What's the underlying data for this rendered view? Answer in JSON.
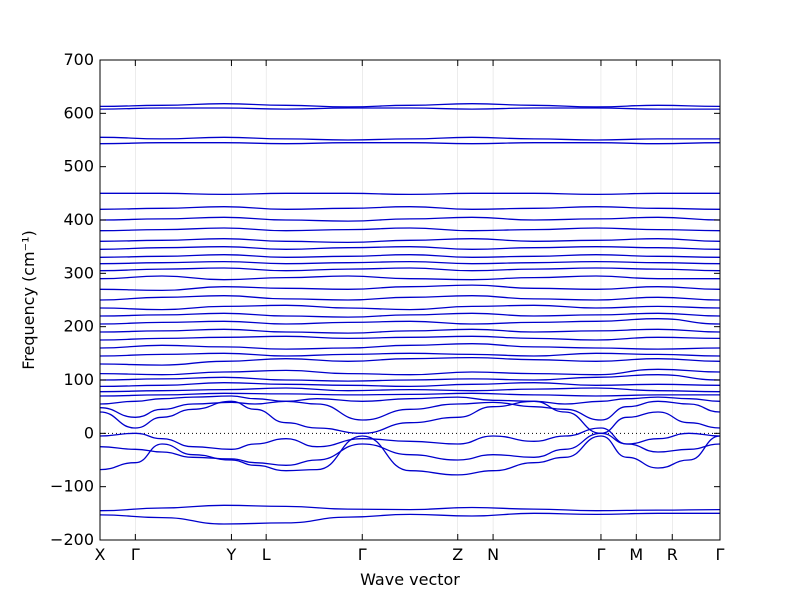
{
  "chart_data": {
    "type": "line",
    "title": "",
    "xlabel": "Wave vector",
    "ylabel": "Frequency (cm⁻¹)",
    "ylim": [
      -200,
      700
    ],
    "yticks": [
      -200,
      -100,
      0,
      100,
      200,
      300,
      400,
      500,
      600,
      700
    ],
    "ytick_labels": [
      "−200",
      "−100",
      "0",
      "100",
      "200",
      "300",
      "400",
      "500",
      "600",
      "700"
    ],
    "kpoints": [
      {
        "label": "X",
        "x": 0.0
      },
      {
        "label": "Γ",
        "x": 0.057
      },
      {
        "label": "Y",
        "x": 0.212
      },
      {
        "label": "L",
        "x": 0.268
      },
      {
        "label": "Γ",
        "x": 0.423
      },
      {
        "label": "Z",
        "x": 0.577
      },
      {
        "label": "N",
        "x": 0.634
      },
      {
        "label": "Γ",
        "x": 0.808
      },
      {
        "label": "M",
        "x": 0.865
      },
      {
        "label": "R",
        "x": 0.923
      },
      {
        "label": "Γ",
        "x": 1.0
      }
    ],
    "zero_line": true,
    "line_color": "#0000cc",
    "series": [
      {
        "x": [
          0,
          0.1,
          0.2,
          0.3,
          0.4,
          0.5,
          0.6,
          0.7,
          0.8,
          0.9,
          1.0
        ],
        "y": [
          -153,
          -158,
          -170,
          -168,
          -157,
          -152,
          -155,
          -150,
          -152,
          -150,
          -150
        ]
      },
      {
        "x": [
          0,
          0.1,
          0.2,
          0.3,
          0.4,
          0.5,
          0.6,
          0.7,
          0.8,
          0.9,
          1.0
        ],
        "y": [
          -145,
          -140,
          -135,
          -137,
          -142,
          -143,
          -139,
          -142,
          -145,
          -144,
          -143
        ]
      },
      {
        "x": [
          0,
          0.057,
          0.1,
          0.15,
          0.212,
          0.25,
          0.3,
          0.35,
          0.423,
          0.5,
          0.577,
          0.634,
          0.7,
          0.75,
          0.808,
          0.85,
          0.9,
          0.95,
          1.0
        ],
        "y": [
          -68,
          -55,
          -20,
          -40,
          -50,
          -60,
          -70,
          -68,
          -5,
          -70,
          -78,
          -70,
          -55,
          -45,
          -5,
          -45,
          -65,
          -50,
          -5
        ]
      },
      {
        "x": [
          0,
          0.057,
          0.1,
          0.15,
          0.212,
          0.25,
          0.3,
          0.35,
          0.423,
          0.5,
          0.577,
          0.634,
          0.7,
          0.75,
          0.808,
          0.85,
          0.9,
          0.95,
          1.0
        ],
        "y": [
          -25,
          -30,
          -35,
          -45,
          -48,
          -55,
          -60,
          -50,
          -20,
          -40,
          -50,
          -40,
          -45,
          -30,
          0,
          -20,
          -35,
          -30,
          -20
        ]
      },
      {
        "x": [
          0,
          0.057,
          0.1,
          0.15,
          0.212,
          0.25,
          0.3,
          0.35,
          0.423,
          0.5,
          0.577,
          0.634,
          0.7,
          0.75,
          0.808,
          0.85,
          0.9,
          0.95,
          1.0
        ],
        "y": [
          -5,
          0,
          -10,
          -25,
          -30,
          -20,
          -10,
          -25,
          -10,
          -15,
          -20,
          -5,
          -15,
          -5,
          10,
          -20,
          -10,
          0,
          -5
        ]
      },
      {
        "x": [
          0,
          0.057,
          0.1,
          0.15,
          0.212,
          0.25,
          0.3,
          0.35,
          0.423,
          0.5,
          0.577,
          0.634,
          0.7,
          0.75,
          0.808,
          0.85,
          0.9,
          0.95,
          1.0
        ],
        "y": [
          40,
          10,
          30,
          45,
          60,
          45,
          20,
          10,
          0,
          20,
          30,
          50,
          60,
          40,
          0,
          30,
          40,
          20,
          10
        ]
      },
      {
        "x": [
          0,
          0.057,
          0.1,
          0.15,
          0.212,
          0.25,
          0.3,
          0.35,
          0.423,
          0.5,
          0.577,
          0.634,
          0.7,
          0.75,
          0.808,
          0.85,
          0.9,
          0.95,
          1.0
        ],
        "y": [
          48,
          30,
          45,
          55,
          58,
          55,
          60,
          55,
          25,
          45,
          55,
          58,
          50,
          45,
          25,
          50,
          60,
          55,
          40
        ]
      },
      {
        "x": [
          0,
          0.057,
          0.1,
          0.15,
          0.212,
          0.25,
          0.3,
          0.35,
          0.423,
          0.5,
          0.577,
          0.634,
          0.7,
          0.75,
          0.808,
          0.85,
          0.9,
          0.95,
          1.0
        ],
        "y": [
          55,
          60,
          65,
          68,
          70,
          65,
          60,
          65,
          60,
          65,
          68,
          62,
          60,
          55,
          60,
          65,
          68,
          65,
          60
        ]
      },
      {
        "x": [
          0,
          0.1,
          0.2,
          0.3,
          0.4,
          0.5,
          0.6,
          0.7,
          0.8,
          0.9,
          1.0
        ],
        "y": [
          70,
          72,
          75,
          74,
          72,
          73,
          75,
          72,
          70,
          72,
          72
        ]
      },
      {
        "x": [
          0,
          0.1,
          0.2,
          0.3,
          0.4,
          0.5,
          0.6,
          0.7,
          0.8,
          0.9,
          1.0
        ],
        "y": [
          78,
          80,
          82,
          85,
          80,
          82,
          80,
          83,
          85,
          80,
          78
        ]
      },
      {
        "x": [
          0,
          0.1,
          0.2,
          0.3,
          0.4,
          0.5,
          0.6,
          0.7,
          0.8,
          0.9,
          1.0
        ],
        "y": [
          88,
          90,
          95,
          92,
          90,
          88,
          92,
          95,
          90,
          92,
          90
        ]
      },
      {
        "x": [
          0,
          0.1,
          0.2,
          0.3,
          0.4,
          0.5,
          0.6,
          0.7,
          0.8,
          0.9,
          1.0
        ],
        "y": [
          100,
          102,
          105,
          100,
          98,
          100,
          102,
          100,
          105,
          110,
          100
        ]
      },
      {
        "x": [
          0,
          0.1,
          0.2,
          0.3,
          0.4,
          0.5,
          0.6,
          0.7,
          0.8,
          0.9,
          1.0
        ],
        "y": [
          112,
          110,
          115,
          118,
          112,
          110,
          115,
          112,
          110,
          120,
          115
        ]
      },
      {
        "x": [
          0,
          0.1,
          0.2,
          0.3,
          0.4,
          0.5,
          0.6,
          0.7,
          0.8,
          0.9,
          1.0
        ],
        "y": [
          130,
          128,
          135,
          140,
          135,
          140,
          142,
          138,
          135,
          140,
          135
        ]
      },
      {
        "x": [
          0,
          0.1,
          0.2,
          0.3,
          0.4,
          0.5,
          0.6,
          0.7,
          0.8,
          0.9,
          1.0
        ],
        "y": [
          145,
          148,
          150,
          145,
          148,
          150,
          148,
          145,
          150,
          148,
          145
        ]
      },
      {
        "x": [
          0,
          0.1,
          0.2,
          0.3,
          0.4,
          0.5,
          0.6,
          0.7,
          0.8,
          0.9,
          1.0
        ],
        "y": [
          160,
          165,
          162,
          158,
          160,
          165,
          168,
          162,
          160,
          158,
          160
        ]
      },
      {
        "x": [
          0,
          0.1,
          0.2,
          0.3,
          0.4,
          0.5,
          0.6,
          0.7,
          0.8,
          0.9,
          1.0
        ],
        "y": [
          175,
          178,
          180,
          182,
          178,
          180,
          182,
          178,
          175,
          180,
          178
        ]
      },
      {
        "x": [
          0,
          0.1,
          0.2,
          0.3,
          0.4,
          0.5,
          0.6,
          0.7,
          0.8,
          0.9,
          1.0
        ],
        "y": [
          190,
          192,
          195,
          190,
          188,
          192,
          195,
          190,
          192,
          195,
          190
        ]
      },
      {
        "x": [
          0,
          0.1,
          0.2,
          0.3,
          0.4,
          0.5,
          0.6,
          0.7,
          0.8,
          0.9,
          1.0
        ],
        "y": [
          205,
          208,
          210,
          205,
          208,
          210,
          205,
          208,
          210,
          215,
          205
        ]
      },
      {
        "x": [
          0,
          0.1,
          0.2,
          0.3,
          0.4,
          0.5,
          0.6,
          0.7,
          0.8,
          0.9,
          1.0
        ],
        "y": [
          220,
          222,
          225,
          220,
          218,
          222,
          225,
          220,
          222,
          225,
          220
        ]
      },
      {
        "x": [
          0,
          0.1,
          0.2,
          0.3,
          0.4,
          0.5,
          0.6,
          0.7,
          0.8,
          0.9,
          1.0
        ],
        "y": [
          235,
          232,
          238,
          240,
          235,
          232,
          238,
          240,
          235,
          238,
          235
        ]
      },
      {
        "x": [
          0,
          0.1,
          0.2,
          0.3,
          0.4,
          0.5,
          0.6,
          0.7,
          0.8,
          0.9,
          1.0
        ],
        "y": [
          250,
          255,
          258,
          252,
          250,
          255,
          258,
          252,
          250,
          255,
          250
        ]
      },
      {
        "x": [
          0,
          0.1,
          0.2,
          0.3,
          0.4,
          0.5,
          0.6,
          0.7,
          0.8,
          0.9,
          1.0
        ],
        "y": [
          270,
          268,
          275,
          272,
          270,
          275,
          278,
          272,
          270,
          275,
          270
        ]
      },
      {
        "x": [
          0,
          0.1,
          0.2,
          0.3,
          0.4,
          0.5,
          0.6,
          0.7,
          0.8,
          0.9,
          1.0
        ],
        "y": [
          290,
          295,
          288,
          292,
          295,
          290,
          288,
          292,
          295,
          290,
          290
        ]
      },
      {
        "x": [
          0,
          0.1,
          0.2,
          0.3,
          0.4,
          0.5,
          0.6,
          0.7,
          0.8,
          0.9,
          1.0
        ],
        "y": [
          305,
          308,
          310,
          305,
          308,
          310,
          305,
          308,
          310,
          308,
          305
        ]
      },
      {
        "x": [
          0,
          0.1,
          0.2,
          0.3,
          0.4,
          0.5,
          0.6,
          0.7,
          0.8,
          0.9,
          1.0
        ],
        "y": [
          318,
          320,
          322,
          318,
          320,
          322,
          318,
          320,
          322,
          320,
          318
        ]
      },
      {
        "x": [
          0,
          0.1,
          0.2,
          0.3,
          0.4,
          0.5,
          0.6,
          0.7,
          0.8,
          0.9,
          1.0
        ],
        "y": [
          330,
          332,
          335,
          330,
          332,
          335,
          330,
          332,
          335,
          332,
          330
        ]
      },
      {
        "x": [
          0,
          0.1,
          0.2,
          0.3,
          0.4,
          0.5,
          0.6,
          0.7,
          0.8,
          0.9,
          1.0
        ],
        "y": [
          345,
          348,
          350,
          345,
          348,
          350,
          345,
          348,
          350,
          348,
          345
        ]
      },
      {
        "x": [
          0,
          0.1,
          0.2,
          0.3,
          0.4,
          0.5,
          0.6,
          0.7,
          0.8,
          0.9,
          1.0
        ],
        "y": [
          360,
          362,
          365,
          360,
          358,
          362,
          365,
          360,
          362,
          365,
          360
        ]
      },
      {
        "x": [
          0,
          0.1,
          0.2,
          0.3,
          0.4,
          0.5,
          0.6,
          0.7,
          0.8,
          0.9,
          1.0
        ],
        "y": [
          380,
          382,
          385,
          380,
          382,
          385,
          380,
          382,
          385,
          382,
          380
        ]
      },
      {
        "x": [
          0,
          0.1,
          0.2,
          0.3,
          0.4,
          0.5,
          0.6,
          0.7,
          0.8,
          0.9,
          1.0
        ],
        "y": [
          400,
          402,
          405,
          400,
          398,
          402,
          405,
          400,
          402,
          405,
          400
        ]
      },
      {
        "x": [
          0,
          0.1,
          0.2,
          0.3,
          0.4,
          0.5,
          0.6,
          0.7,
          0.8,
          0.9,
          1.0
        ],
        "y": [
          420,
          422,
          425,
          420,
          422,
          425,
          420,
          422,
          425,
          422,
          420
        ]
      },
      {
        "x": [
          0,
          0.1,
          0.2,
          0.3,
          0.4,
          0.5,
          0.6,
          0.7,
          0.8,
          0.9,
          1.0
        ],
        "y": [
          450,
          450,
          448,
          450,
          450,
          448,
          450,
          450,
          448,
          450,
          450
        ]
      },
      {
        "x": [
          0,
          0.1,
          0.2,
          0.3,
          0.4,
          0.5,
          0.6,
          0.7,
          0.8,
          0.9,
          1.0
        ],
        "y": [
          543,
          545,
          545,
          543,
          545,
          545,
          543,
          545,
          545,
          543,
          545
        ]
      },
      {
        "x": [
          0,
          0.1,
          0.2,
          0.3,
          0.4,
          0.5,
          0.6,
          0.7,
          0.8,
          0.9,
          1.0
        ],
        "y": [
          555,
          552,
          555,
          552,
          550,
          552,
          555,
          552,
          550,
          552,
          552
        ]
      },
      {
        "x": [
          0,
          0.1,
          0.2,
          0.3,
          0.4,
          0.5,
          0.6,
          0.7,
          0.8,
          0.9,
          1.0
        ],
        "y": [
          608,
          610,
          610,
          608,
          610,
          610,
          608,
          610,
          610,
          608,
          608
        ]
      },
      {
        "x": [
          0,
          0.1,
          0.2,
          0.3,
          0.4,
          0.5,
          0.6,
          0.7,
          0.8,
          0.9,
          1.0
        ],
        "y": [
          613,
          615,
          618,
          615,
          612,
          615,
          618,
          615,
          612,
          615,
          613
        ]
      }
    ]
  }
}
